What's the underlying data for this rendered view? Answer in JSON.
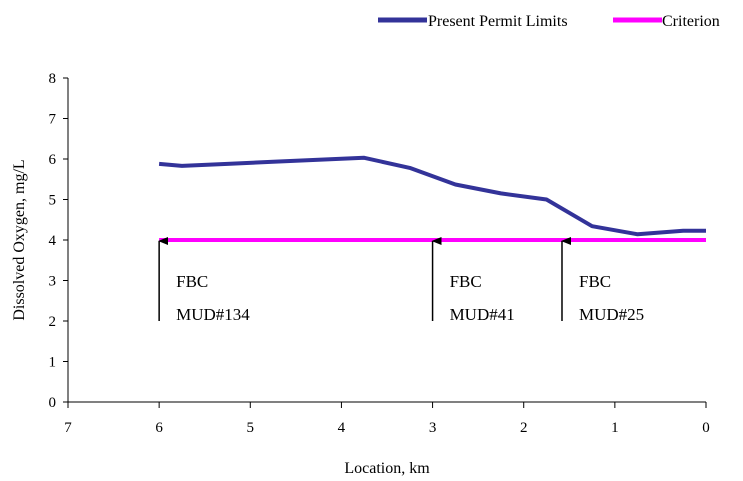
{
  "chart_data": {
    "type": "line",
    "title": "",
    "xlabel": "Location, km",
    "ylabel": "Dissolved Oxygen, mg/L",
    "xlim": [
      7,
      0
    ],
    "ylim": [
      0,
      8
    ],
    "x_ticks": [
      7,
      6,
      5,
      4,
      3,
      2,
      1,
      0
    ],
    "y_ticks": [
      0,
      1,
      2,
      3,
      4,
      5,
      6,
      7,
      8
    ],
    "grid": false,
    "legend_position": "top-right",
    "series": [
      {
        "name": "Present Permit Limits",
        "color": "#333399",
        "x": [
          6.0,
          5.75,
          5.25,
          4.75,
          4.25,
          3.75,
          3.25,
          2.75,
          2.25,
          1.75,
          1.25,
          0.75,
          0.25,
          0.0
        ],
        "y": [
          5.88,
          5.83,
          5.88,
          5.93,
          5.98,
          6.03,
          5.78,
          5.37,
          5.15,
          5.0,
          4.34,
          4.14,
          4.23,
          4.23
        ]
      },
      {
        "name": "Criterion",
        "color": "#ff00ff",
        "x": [
          6.0,
          0.0
        ],
        "y": [
          4.0,
          4.0
        ]
      }
    ],
    "annotations": [
      {
        "x": 6.0,
        "arrow_from": 2.0,
        "arrow_to": 4.0,
        "line1": "FBC",
        "line2": "MUD#134"
      },
      {
        "x": 3.0,
        "arrow_from": 2.0,
        "arrow_to": 4.0,
        "line1": "FBC",
        "line2": "MUD#41"
      },
      {
        "x": 1.58,
        "arrow_from": 2.0,
        "arrow_to": 4.0,
        "line1": "FBC",
        "line2": "MUD#25"
      }
    ]
  }
}
